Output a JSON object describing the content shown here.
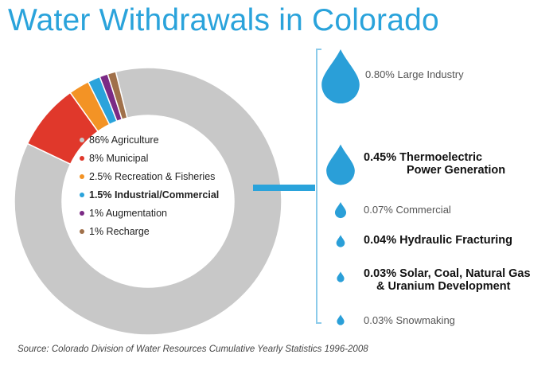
{
  "title": "Water Withdrawals in Colorado",
  "source": "Source: Colorado Division of Water Resources Cumulative Yearly Statistics 1996-2008",
  "chart_data": {
    "type": "pie",
    "title": "Water Withdrawals in Colorado",
    "slices": [
      {
        "label": "86% Agriculture",
        "value": 86,
        "color": "#c8c8c8",
        "bold": false
      },
      {
        "label": "8% Municipal",
        "value": 8,
        "color": "#e0382b",
        "bold": false
      },
      {
        "label": "2.5% Recreation & Fisheries",
        "value": 2.5,
        "color": "#f39325",
        "bold": false
      },
      {
        "label": "1.5% Industrial/Commercial",
        "value": 1.5,
        "color": "#2aa3db",
        "bold": true
      },
      {
        "label": "1% Augmentation",
        "value": 1,
        "color": "#7b2a85",
        "bold": false
      },
      {
        "label": "1% Recharge",
        "value": 1,
        "color": "#a0704a",
        "bold": false
      }
    ],
    "breakdown": {
      "of": "1.5% Industrial/Commercial",
      "items": [
        {
          "line1": "0.80% Large Industry",
          "line2": "",
          "value": 0.8,
          "bold": false
        },
        {
          "line1": "0.45% Thermoelectric",
          "line2": "Power Generation",
          "value": 0.45,
          "bold": true
        },
        {
          "line1": "0.07% Commercial",
          "line2": "",
          "value": 0.07,
          "bold": false
        },
        {
          "line1": "0.04% Hydraulic Fracturing",
          "line2": "",
          "value": 0.04,
          "bold": true
        },
        {
          "line1": "0.03% Solar, Coal, Natural Gas",
          "line2": "& Uranium Development",
          "value": 0.03,
          "bold": true
        },
        {
          "line1": "0.03% Snowmaking",
          "line2": "",
          "value": 0.03,
          "bold": false
        }
      ]
    },
    "colors": {
      "accent": "#2aa3db",
      "drop": "#2a9fd8"
    }
  }
}
